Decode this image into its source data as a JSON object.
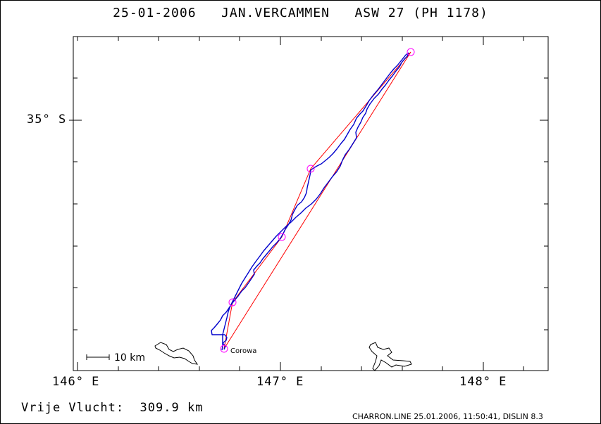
{
  "header": {
    "date": "25-01-2006",
    "pilot": "JAN.VERCAMMEN",
    "glider": "ASW 27 (PH 1178)"
  },
  "axes": {
    "lat_label": "35° S",
    "lon_labels": [
      "146° E",
      "147° E",
      "148° E"
    ]
  },
  "scale_bar": {
    "label": "10 km"
  },
  "town": {
    "label": "Corowa"
  },
  "footer": {
    "flight_label": "Vrije Vlucht:",
    "distance": "309.9 km",
    "file_info": "CHARRON.LINE 25.01.2006, 11:50:41, DISLIN 8.3"
  },
  "colors": {
    "track": "#0000cc",
    "task_line": "#ff0000",
    "turnpoint": "#ff00ff",
    "coast": "#000000"
  }
}
